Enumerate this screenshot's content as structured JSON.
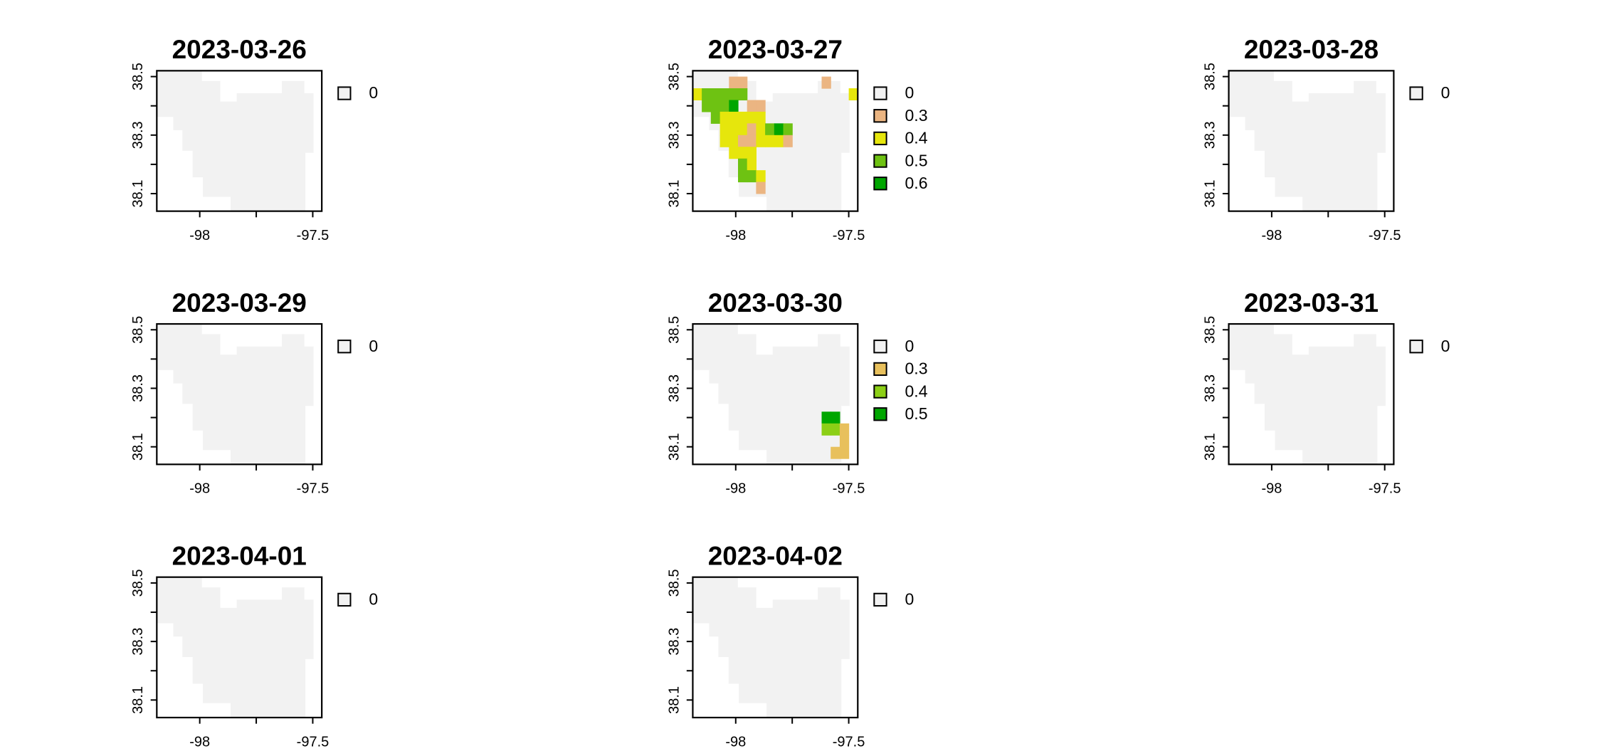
{
  "chart_data": [
    {
      "type": "heatmap",
      "title": "2023-03-26",
      "x_ticks": [
        "-98",
        "-97.5"
      ],
      "y_ticks": [
        "38.1",
        "38.3",
        "38.5"
      ],
      "xlim": [
        -98.19,
        -97.46
      ],
      "ylim": [
        38.04,
        38.52
      ],
      "legend": {
        "labels": [
          "0"
        ],
        "colors": [
          "#f2f2f2"
        ]
      },
      "cells": []
    },
    {
      "type": "heatmap",
      "title": "2023-03-27",
      "x_ticks": [
        "-98",
        "-97.5"
      ],
      "y_ticks": [
        "38.1",
        "38.3",
        "38.5"
      ],
      "xlim": [
        -98.19,
        -97.46
      ],
      "ylim": [
        38.04,
        38.52
      ],
      "legend": {
        "labels": [
          "0",
          "0.3",
          "0.4",
          "0.5",
          "0.6"
        ],
        "colors": [
          "#f2f2f2",
          "#ebb582",
          "#e6e60c",
          "#6ec212",
          "#00a600"
        ]
      },
      "cells": [
        {
          "lon": -98.01,
          "lat": 38.48,
          "value": 0.3
        },
        {
          "lon": -97.97,
          "lat": 38.48,
          "value": 0.3
        },
        {
          "lon": -97.6,
          "lat": 38.48,
          "value": 0.3
        },
        {
          "lon": -98.17,
          "lat": 38.44,
          "value": 0.4
        },
        {
          "lon": -98.13,
          "lat": 38.44,
          "value": 0.5
        },
        {
          "lon": -98.09,
          "lat": 38.44,
          "value": 0.5
        },
        {
          "lon": -98.05,
          "lat": 38.44,
          "value": 0.5
        },
        {
          "lon": -98.01,
          "lat": 38.44,
          "value": 0.5
        },
        {
          "lon": -97.97,
          "lat": 38.44,
          "value": 0.5
        },
        {
          "lon": -97.48,
          "lat": 38.44,
          "value": 0.4
        },
        {
          "lon": -98.13,
          "lat": 38.4,
          "value": 0.5
        },
        {
          "lon": -98.09,
          "lat": 38.4,
          "value": 0.5
        },
        {
          "lon": -98.05,
          "lat": 38.4,
          "value": 0.5
        },
        {
          "lon": -98.01,
          "lat": 38.4,
          "value": 0.6
        },
        {
          "lon": -97.93,
          "lat": 38.4,
          "value": 0.3
        },
        {
          "lon": -97.89,
          "lat": 38.4,
          "value": 0.3
        },
        {
          "lon": -98.09,
          "lat": 38.36,
          "value": 0.5
        },
        {
          "lon": -98.05,
          "lat": 38.36,
          "value": 0.4
        },
        {
          "lon": -98.01,
          "lat": 38.36,
          "value": 0.4
        },
        {
          "lon": -97.97,
          "lat": 38.36,
          "value": 0.4
        },
        {
          "lon": -97.93,
          "lat": 38.36,
          "value": 0.4
        },
        {
          "lon": -97.89,
          "lat": 38.36,
          "value": 0.4
        },
        {
          "lon": -98.05,
          "lat": 38.32,
          "value": 0.4
        },
        {
          "lon": -98.01,
          "lat": 38.32,
          "value": 0.4
        },
        {
          "lon": -97.97,
          "lat": 38.32,
          "value": 0.4
        },
        {
          "lon": -97.93,
          "lat": 38.32,
          "value": 0.3
        },
        {
          "lon": -97.89,
          "lat": 38.32,
          "value": 0.4
        },
        {
          "lon": -97.85,
          "lat": 38.32,
          "value": 0.5
        },
        {
          "lon": -97.81,
          "lat": 38.32,
          "value": 0.6
        },
        {
          "lon": -97.77,
          "lat": 38.32,
          "value": 0.5
        },
        {
          "lon": -98.05,
          "lat": 38.28,
          "value": 0.4
        },
        {
          "lon": -98.01,
          "lat": 38.28,
          "value": 0.4
        },
        {
          "lon": -97.97,
          "lat": 38.28,
          "value": 0.3
        },
        {
          "lon": -97.93,
          "lat": 38.28,
          "value": 0.3
        },
        {
          "lon": -97.89,
          "lat": 38.28,
          "value": 0.4
        },
        {
          "lon": -97.85,
          "lat": 38.28,
          "value": 0.4
        },
        {
          "lon": -97.81,
          "lat": 38.28,
          "value": 0.4
        },
        {
          "lon": -97.77,
          "lat": 38.28,
          "value": 0.3
        },
        {
          "lon": -98.01,
          "lat": 38.24,
          "value": 0.4
        },
        {
          "lon": -97.97,
          "lat": 38.24,
          "value": 0.4
        },
        {
          "lon": -97.93,
          "lat": 38.24,
          "value": 0.4
        },
        {
          "lon": -97.97,
          "lat": 38.2,
          "value": 0.5
        },
        {
          "lon": -97.93,
          "lat": 38.2,
          "value": 0.4
        },
        {
          "lon": -97.97,
          "lat": 38.16,
          "value": 0.5
        },
        {
          "lon": -97.93,
          "lat": 38.16,
          "value": 0.5
        },
        {
          "lon": -97.89,
          "lat": 38.16,
          "value": 0.4
        },
        {
          "lon": -97.89,
          "lat": 38.12,
          "value": 0.3
        }
      ]
    },
    {
      "type": "heatmap",
      "title": "2023-03-28",
      "x_ticks": [
        "-98",
        "-97.5"
      ],
      "y_ticks": [
        "38.1",
        "38.3",
        "38.5"
      ],
      "xlim": [
        -98.19,
        -97.46
      ],
      "ylim": [
        38.04,
        38.52
      ],
      "legend": {
        "labels": [
          "0"
        ],
        "colors": [
          "#f2f2f2"
        ]
      },
      "cells": []
    },
    {
      "type": "heatmap",
      "title": "2023-03-29",
      "x_ticks": [
        "-98",
        "-97.5"
      ],
      "y_ticks": [
        "38.1",
        "38.3",
        "38.5"
      ],
      "xlim": [
        -98.19,
        -97.46
      ],
      "ylim": [
        38.04,
        38.52
      ],
      "legend": {
        "labels": [
          "0"
        ],
        "colors": [
          "#f2f2f2"
        ]
      },
      "cells": []
    },
    {
      "type": "heatmap",
      "title": "2023-03-30",
      "x_ticks": [
        "-98",
        "-97.5"
      ],
      "y_ticks": [
        "38.1",
        "38.3",
        "38.5"
      ],
      "xlim": [
        -98.19,
        -97.46
      ],
      "ylim": [
        38.04,
        38.52
      ],
      "legend": {
        "labels": [
          "0",
          "0.3",
          "0.4",
          "0.5"
        ],
        "colors": [
          "#f2f2f2",
          "#e8c05c",
          "#8ccf16",
          "#00a600"
        ]
      },
      "cells": [
        {
          "lon": -97.6,
          "lat": 38.2,
          "value": 0.5
        },
        {
          "lon": -97.56,
          "lat": 38.2,
          "value": 0.5
        },
        {
          "lon": -97.6,
          "lat": 38.16,
          "value": 0.4
        },
        {
          "lon": -97.56,
          "lat": 38.16,
          "value": 0.4
        },
        {
          "lon": -97.52,
          "lat": 38.16,
          "value": 0.3
        },
        {
          "lon": -97.52,
          "lat": 38.12,
          "value": 0.3
        },
        {
          "lon": -97.56,
          "lat": 38.08,
          "value": 0.3
        },
        {
          "lon": -97.52,
          "lat": 38.08,
          "value": 0.3
        }
      ]
    },
    {
      "type": "heatmap",
      "title": "2023-03-31",
      "x_ticks": [
        "-98",
        "-97.5"
      ],
      "y_ticks": [
        "38.1",
        "38.3",
        "38.5"
      ],
      "xlim": [
        -98.19,
        -97.46
      ],
      "ylim": [
        38.04,
        38.52
      ],
      "legend": {
        "labels": [
          "0"
        ],
        "colors": [
          "#f2f2f2"
        ]
      },
      "cells": []
    },
    {
      "type": "heatmap",
      "title": "2023-04-01",
      "x_ticks": [
        "-98",
        "-97.5"
      ],
      "y_ticks": [
        "38.1",
        "38.3",
        "38.5"
      ],
      "xlim": [
        -98.19,
        -97.46
      ],
      "ylim": [
        38.04,
        38.52
      ],
      "legend": {
        "labels": [
          "0"
        ],
        "colors": [
          "#f2f2f2"
        ]
      },
      "cells": []
    },
    {
      "type": "heatmap",
      "title": "2023-04-02",
      "x_ticks": [
        "-98",
        "-97.5"
      ],
      "y_ticks": [
        "38.1",
        "38.3",
        "38.5"
      ],
      "xlim": [
        -98.19,
        -97.46
      ],
      "ylim": [
        38.04,
        38.52
      ],
      "legend": {
        "labels": [
          "0"
        ],
        "colors": [
          "#f2f2f2"
        ]
      },
      "cells": []
    }
  ]
}
